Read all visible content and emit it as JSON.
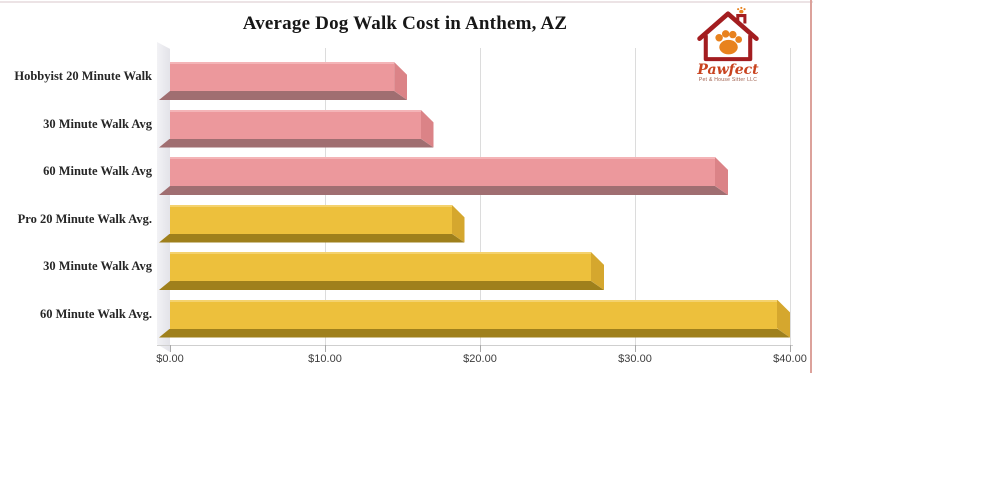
{
  "logo": {
    "name": "Pawfect",
    "tagline": "Pet & House Sitter LLC",
    "house_color": "#a31d20",
    "paw_color": "#e8821e"
  },
  "chart_data": {
    "type": "bar",
    "orientation": "horizontal",
    "title": "Average Dog Walk Cost in Anthem, AZ",
    "categories": [
      "Hobbyist 20 Minute Walk",
      "30 Minute Walk  Avg",
      "60 Minute Walk Avg",
      "Pro 20 Minute Walk Avg.",
      "30 Minute Walk Avg",
      "60 Minute Walk Avg."
    ],
    "values": [
      15.3,
      17,
      36,
      19,
      28,
      40
    ],
    "groups": [
      "hobbyist",
      "hobbyist",
      "hobbyist",
      "pro",
      "pro",
      "pro"
    ],
    "palette": {
      "hobbyist": {
        "face": "#ec989c",
        "hi": "#f4b4b7",
        "cap": "#db8387",
        "strip": "#a06e71"
      },
      "pro": {
        "face": "#edc03c",
        "hi": "#f4d26e",
        "cap": "#d5a72e",
        "strip": "#9f801c"
      }
    },
    "xlabel": "",
    "ylabel": "",
    "xlim": [
      0,
      40
    ],
    "x_ticks": [
      0,
      10,
      20,
      30,
      40
    ],
    "x_tick_labels": [
      "$0.00",
      "$10.00",
      "$20.00",
      "$30.00",
      "$40.00"
    ],
    "grid": true,
    "legend": false
  }
}
